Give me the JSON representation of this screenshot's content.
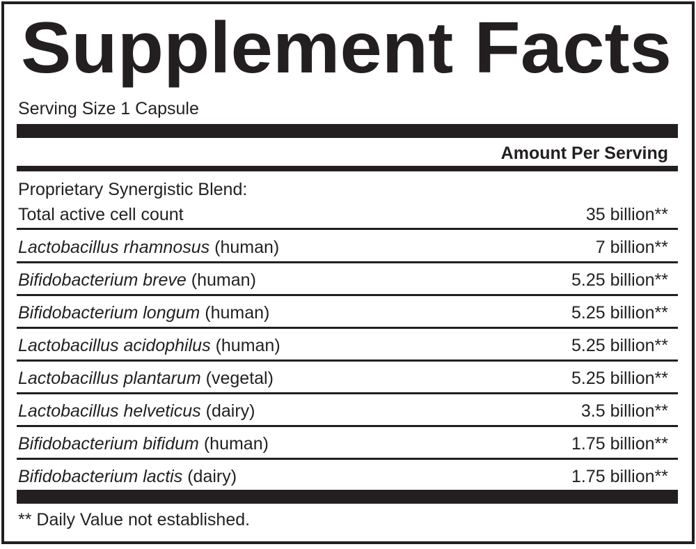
{
  "title": "Supplement Facts",
  "serving_size": "Serving Size 1 Capsule",
  "amount_header": "Amount Per Serving",
  "blend": {
    "name": "Proprietary Synergistic Blend:",
    "label": "Total active cell count",
    "amount": "35 billion**"
  },
  "rows": [
    {
      "name": "Lactobacillus rhamnosus",
      "source": "(human)",
      "amount": "7 billion**"
    },
    {
      "name": "Bifidobacterium breve",
      "source": "(human)",
      "amount": "5.25 billion**"
    },
    {
      "name": "Bifidobacterium longum",
      "source": "(human)",
      "amount": "5.25 billion**"
    },
    {
      "name": "Lactobacillus acidophilus",
      "source": "(human)",
      "amount": "5.25 billion**"
    },
    {
      "name": "Lactobacillus plantarum",
      "source": "(vegetal)",
      "amount": "5.25 billion**"
    },
    {
      "name": "Lactobacillus helveticus",
      "source": "(dairy)",
      "amount": "3.5 billion**"
    },
    {
      "name": "Bifidobacterium bifidum",
      "source": "(human)",
      "amount": "1.75 billion**"
    },
    {
      "name": "Bifidobacterium lactis",
      "source": "(dairy)",
      "amount": "1.75 billion**"
    }
  ],
  "footnote": "** Daily Value not established."
}
